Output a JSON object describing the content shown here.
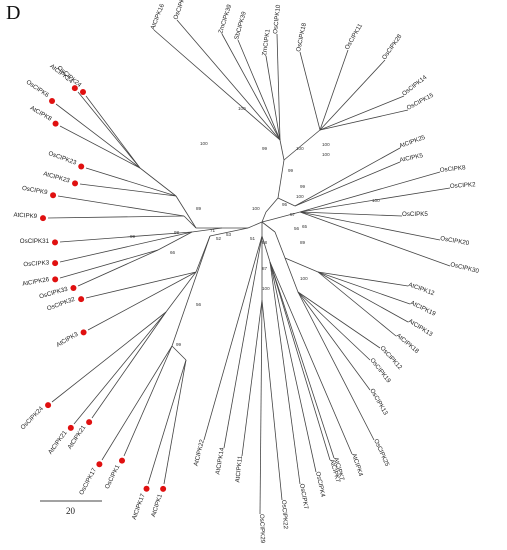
{
  "panel_label": "D",
  "scale_bar": {
    "label": "20"
  },
  "colors": {
    "marker": "#e01010",
    "branch": "#444444",
    "text": "#222222"
  },
  "bootstrap_values": [
    "100",
    "100",
    "99",
    "100",
    "100",
    "100",
    "99",
    "100",
    "99",
    "100",
    "57",
    "95",
    "56",
    "65",
    "53",
    "51",
    "71",
    "52",
    "98",
    "89",
    "87",
    "100",
    "100",
    "100",
    "89",
    "99",
    "98",
    "66",
    "56",
    "99"
  ],
  "leaves": [
    {
      "label": "OsCIPK16",
      "marked": false
    },
    {
      "label": "AtCIPK16",
      "marked": false
    },
    {
      "label": "ZmCIPK39",
      "marked": false
    },
    {
      "label": "SbCIPK39",
      "marked": false
    },
    {
      "label": "OsCIPK10",
      "marked": false
    },
    {
      "label": "ZmCIPK1",
      "marked": false
    },
    {
      "label": "OsCIPK18",
      "marked": false
    },
    {
      "label": "OsCIPK11",
      "marked": false
    },
    {
      "label": "OsCIPK28",
      "marked": false
    },
    {
      "label": "OsCIPK14",
      "marked": false
    },
    {
      "label": "OsCIPK15",
      "marked": false
    },
    {
      "label": "AtCIPK25",
      "marked": false
    },
    {
      "label": "AtCIPK5",
      "marked": false
    },
    {
      "label": "OsCIPK8",
      "marked": false
    },
    {
      "label": "OsCIPK2",
      "marked": false
    },
    {
      "label": "OsCIPK5",
      "marked": false
    },
    {
      "label": "OsCIPK20",
      "marked": false
    },
    {
      "label": "OsCIPK30",
      "marked": false
    },
    {
      "label": "AtCIPK12",
      "marked": false
    },
    {
      "label": "AtCIPK19",
      "marked": false
    },
    {
      "label": "AtCIPK13",
      "marked": false
    },
    {
      "label": "AtCIPK18",
      "marked": false
    },
    {
      "label": "OsCIPK12",
      "marked": false
    },
    {
      "label": "OsCIPK19",
      "marked": false
    },
    {
      "label": "OsCIPK13",
      "marked": false
    },
    {
      "label": "OsCIPK25",
      "marked": false
    },
    {
      "label": "AtCIPK4",
      "marked": false
    },
    {
      "label": "AtCIPK7",
      "marked": false
    },
    {
      "label": "OsCIPK4",
      "marked": false
    },
    {
      "label": "OsCIPK7",
      "marked": false
    },
    {
      "label": "OsCIPK22",
      "marked": false
    },
    {
      "label": "OsCIPK29",
      "marked": false
    },
    {
      "label": "AtCIPK11",
      "marked": false
    },
    {
      "label": "AtCIPK14",
      "marked": false
    },
    {
      "label": "AtCIPK22",
      "marked": false
    },
    {
      "label": "AtCIPK1",
      "marked": true
    },
    {
      "label": "AtCIPK17",
      "marked": true
    },
    {
      "label": "OsCIPK1",
      "marked": true
    },
    {
      "label": "OsCIPK17",
      "marked": true
    },
    {
      "label": "AtCIPK21",
      "marked": true
    },
    {
      "label": "AtCIPK21",
      "marked": true
    },
    {
      "label": "OsCIPK24",
      "marked": true
    },
    {
      "label": "AtCIPK3",
      "marked": true
    },
    {
      "label": "OsCIPK32",
      "marked": true
    },
    {
      "label": "OsCIPK33",
      "marked": true
    },
    {
      "label": "AtCIPK26",
      "marked": true
    },
    {
      "label": "OsCIPK3",
      "marked": true
    },
    {
      "label": "OsCIPK31",
      "marked": true
    },
    {
      "label": "AtCIPK9",
      "marked": true
    },
    {
      "label": "OsCIPK9",
      "marked": true
    },
    {
      "label": "AtCIPK23",
      "marked": true
    },
    {
      "label": "OsCIPK23",
      "marked": true
    },
    {
      "label": "AtCIPK8",
      "marked": true
    },
    {
      "label": "OsCIPK6",
      "marked": true
    },
    {
      "label": "AtCIPK24",
      "marked": true
    },
    {
      "label": "OsCIPK24",
      "marked": true
    },
    {
      "label": "AtCIPK7",
      "marked": false
    }
  ]
}
